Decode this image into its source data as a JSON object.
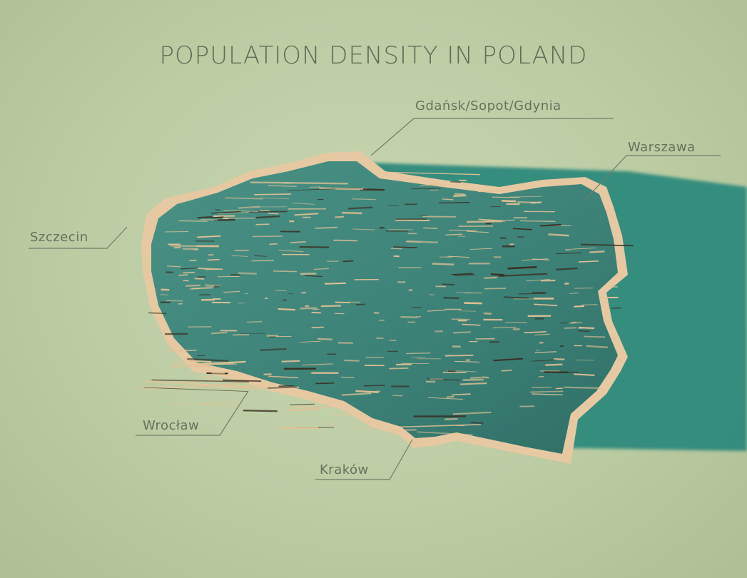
{
  "title": "POPULATION DENSITY IN POLAND",
  "colors": {
    "background": "#bfcda6",
    "map_surface": "#3f8a7f",
    "shadow": "#2f8a7c",
    "spike": "#e6c49a",
    "label_text": "#66735e"
  },
  "cities": {
    "gdansk": "Gdańsk/Sopot/Gdynia",
    "warszawa": "Warszawa",
    "szczecin": "Szczecin",
    "wroclaw": "Wrocław",
    "krakow": "Kraków"
  }
}
